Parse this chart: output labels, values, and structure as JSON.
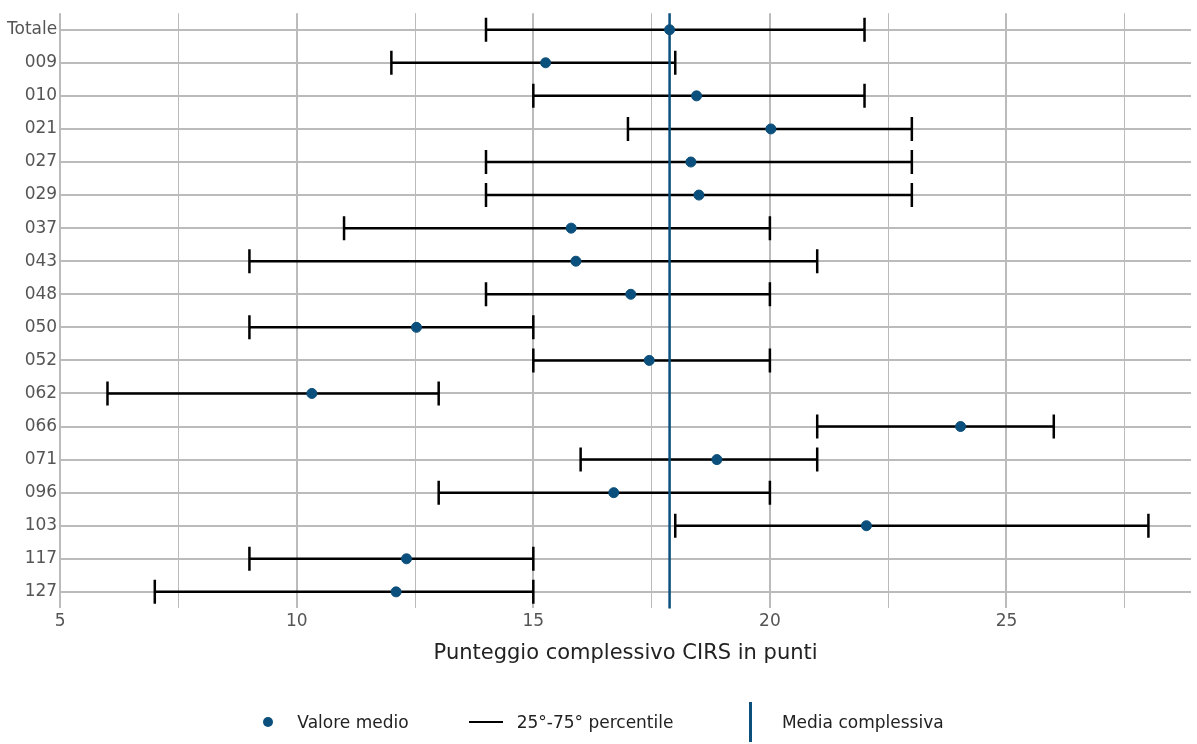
{
  "chart_data": {
    "type": "scatter",
    "orientation": "horizontal",
    "xlabel": "Punteggio complessivo CIRS in punti",
    "categories": [
      "Totale",
      "009",
      "010",
      "021",
      "027",
      "029",
      "037",
      "043",
      "048",
      "050",
      "052",
      "062",
      "066",
      "071",
      "096",
      "103",
      "117",
      "127"
    ],
    "series": [
      {
        "name": "Valore medio",
        "color": "#0b4f7c",
        "values": [
          17.88,
          15.26,
          18.45,
          20.02,
          18.33,
          18.5,
          15.8,
          15.9,
          17.06,
          12.53,
          17.45,
          10.32,
          24.03,
          18.88,
          16.7,
          22.04,
          12.32,
          12.1
        ],
        "errors": [
          [
            14,
            22
          ],
          [
            12,
            18
          ],
          [
            15,
            22
          ],
          [
            17,
            23
          ],
          [
            14,
            23
          ],
          [
            14,
            23
          ],
          [
            11,
            20
          ],
          [
            9,
            21
          ],
          [
            14,
            20
          ],
          [
            9,
            15
          ],
          [
            15,
            20
          ],
          [
            6,
            13
          ],
          [
            21,
            26
          ],
          [
            16,
            21
          ],
          [
            13,
            20
          ],
          [
            18,
            28
          ],
          [
            9,
            15
          ],
          [
            7,
            15
          ]
        ]
      }
    ],
    "xlim": [
      5,
      28.9
    ],
    "xticks": [
      5,
      {
        "value": 7.5,
        "label": null
      },
      10,
      {
        "value": 12.5,
        "label": null
      },
      15,
      {
        "value": 17.5,
        "label": null
      },
      20,
      {
        "value": 22.5,
        "label": null
      },
      25,
      {
        "value": 27.5,
        "label": null
      }
    ],
    "ref_lines": [
      {
        "axis": "x",
        "value": 17.88,
        "label": "Media complessiva",
        "color": "#0b4f7c"
      }
    ],
    "annotations": [
      "25°-75° percentile"
    ],
    "grid": true,
    "legend": "bottom",
    "marker": "circle"
  }
}
